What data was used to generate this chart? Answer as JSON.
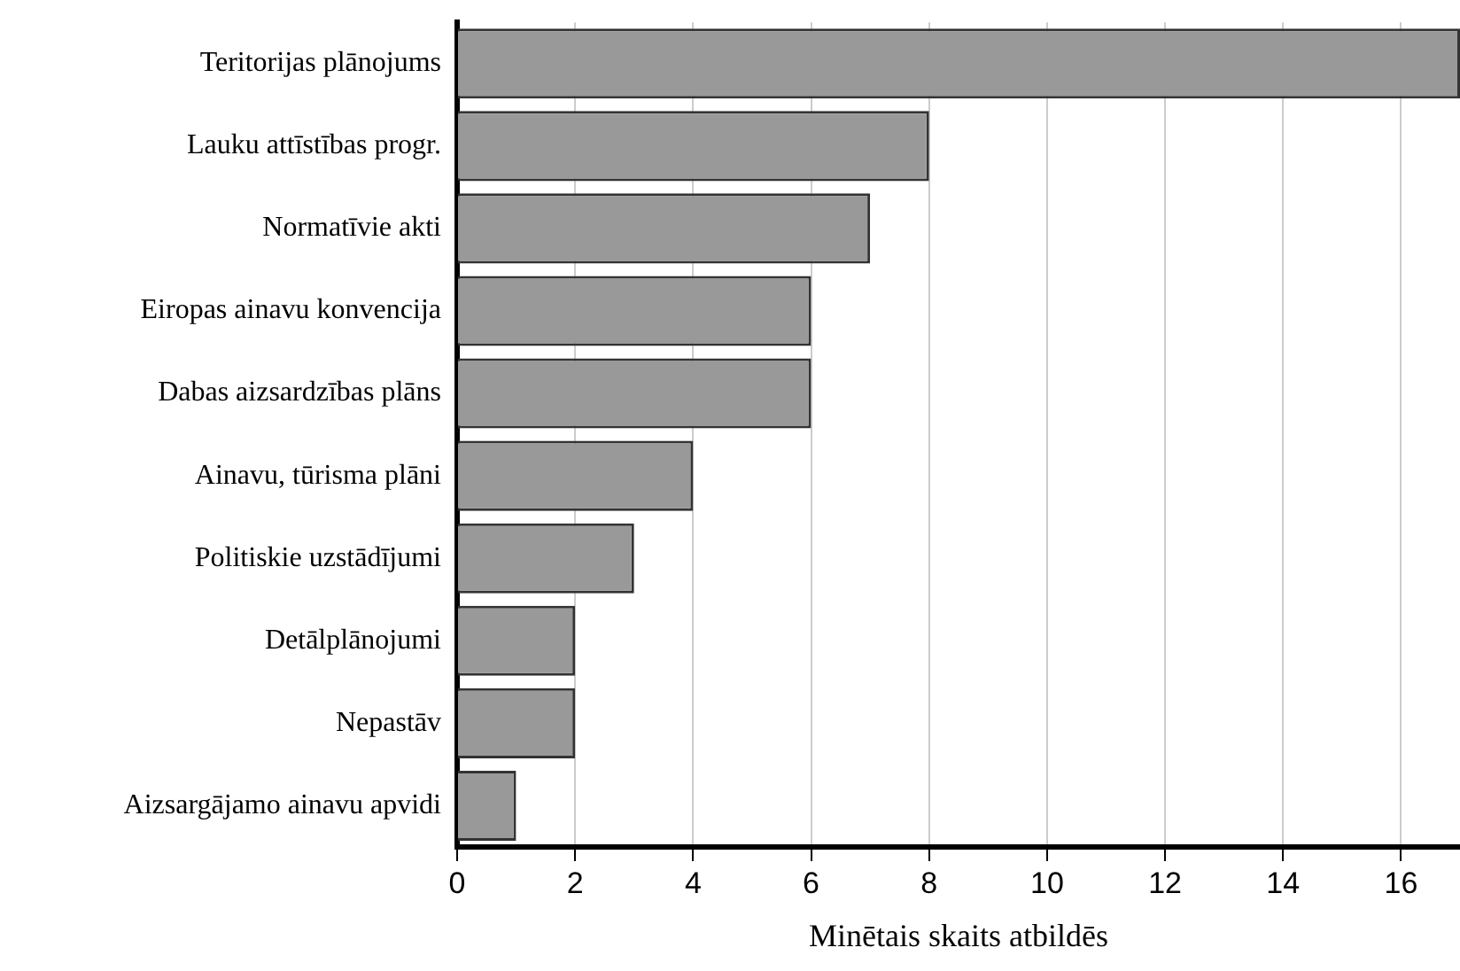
{
  "chart_data": {
    "type": "bar",
    "orientation": "horizontal",
    "xlabel": "Minētais skaits atbildēs",
    "categories": [
      "Teritorijas plānojums",
      "Lauku attīstības progr.",
      "Normatīvie akti",
      "Eiropas ainavu konvencija",
      "Dabas aizsardzības plāns",
      "Ainavu, tūrisma plāni",
      "Politiskie uzstādījumi",
      "Detālplānojumi",
      "Nepastāv",
      "Aizsargājamo ainavu apvidi"
    ],
    "values": [
      17,
      8,
      7,
      6,
      6,
      4,
      3,
      2,
      2,
      1
    ],
    "color": "#999999",
    "xlim": [
      0,
      17
    ],
    "xticks": [
      0,
      2,
      4,
      6,
      8,
      10,
      12,
      14,
      16
    ],
    "grid": "x",
    "legend": false
  }
}
